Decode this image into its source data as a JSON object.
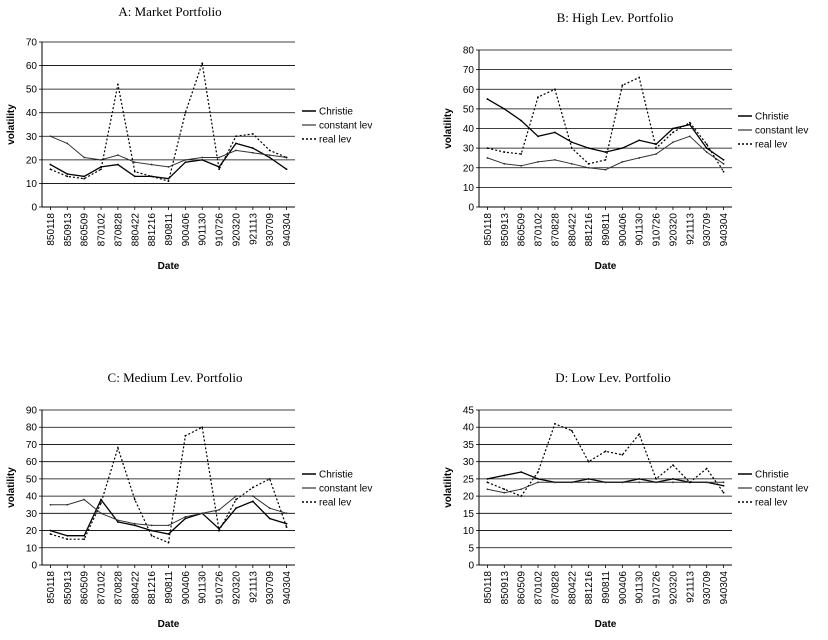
{
  "chart_data": [
    {
      "type": "line",
      "title": "A: Market Portfolio",
      "xlabel": "Date",
      "ylabel": "volatility",
      "ylim": [
        0,
        70
      ],
      "yticks": [
        0,
        10,
        20,
        30,
        40,
        50,
        60,
        70
      ],
      "grid": true,
      "legend_position": "right",
      "x": [
        "850118",
        "850913",
        "860509",
        "870102",
        "870828",
        "880422",
        "881216",
        "890811",
        "900406",
        "901130",
        "910726",
        "920320",
        "921113",
        "930709",
        "940304"
      ],
      "series": [
        {
          "name": "Christie",
          "values": [
            18,
            14,
            13,
            17,
            18,
            13,
            13,
            12,
            19,
            20,
            17,
            27,
            25,
            21,
            16
          ]
        },
        {
          "name": "constant lev",
          "values": [
            30,
            27,
            21,
            20,
            22,
            19,
            18,
            17,
            20,
            21,
            21,
            24,
            23,
            22,
            21
          ]
        },
        {
          "name": "real lev",
          "values": [
            16,
            13,
            12,
            16,
            52,
            15,
            13,
            11,
            40,
            61,
            16,
            30,
            31,
            24,
            21
          ]
        }
      ]
    },
    {
      "type": "line",
      "title": "B: High Lev. Portfolio",
      "xlabel": "Date",
      "ylabel": "volatility",
      "ylim": [
        0,
        80
      ],
      "yticks": [
        0,
        10,
        20,
        30,
        40,
        50,
        60,
        70,
        80
      ],
      "grid": true,
      "legend_position": "right",
      "x": [
        "850118",
        "850913",
        "860509",
        "870102",
        "870828",
        "880422",
        "881216",
        "890811",
        "900406",
        "901130",
        "910726",
        "920320",
        "921113",
        "930709",
        "940304"
      ],
      "series": [
        {
          "name": "Christie",
          "values": [
            55,
            50,
            44,
            36,
            38,
            33,
            30,
            28,
            30,
            34,
            32,
            40,
            42,
            30,
            24
          ]
        },
        {
          "name": "constant lev",
          "values": [
            25,
            22,
            21,
            23,
            24,
            22,
            20,
            19,
            23,
            25,
            27,
            33,
            36,
            28,
            22
          ]
        },
        {
          "name": "real lev",
          "values": [
            30,
            28,
            27,
            56,
            60,
            30,
            22,
            24,
            62,
            66,
            30,
            38,
            43,
            32,
            18
          ]
        }
      ]
    },
    {
      "type": "line",
      "title": "C: Medium Lev. Portfolio",
      "xlabel": "Date",
      "ylabel": "volatility",
      "ylim": [
        0,
        90
      ],
      "yticks": [
        0,
        10,
        20,
        30,
        40,
        50,
        60,
        70,
        80,
        90
      ],
      "grid": true,
      "legend_position": "right",
      "x": [
        "850118",
        "850913",
        "860509",
        "870102",
        "870828",
        "880422",
        "881216",
        "890811",
        "900406",
        "901130",
        "910726",
        "920320",
        "921113",
        "930709",
        "940304"
      ],
      "series": [
        {
          "name": "Christie",
          "values": [
            20,
            17,
            17,
            38,
            25,
            23,
            20,
            18,
            27,
            30,
            21,
            33,
            37,
            27,
            24
          ]
        },
        {
          "name": "constant lev",
          "values": [
            35,
            35,
            38,
            30,
            26,
            24,
            23,
            23,
            28,
            30,
            32,
            40,
            40,
            33,
            30
          ]
        },
        {
          "name": "real lev",
          "values": [
            18,
            15,
            15,
            36,
            68,
            38,
            17,
            13,
            75,
            80,
            20,
            38,
            45,
            50,
            22
          ]
        }
      ]
    },
    {
      "type": "line",
      "title": "D: Low Lev. Portfolio",
      "xlabel": "Date",
      "ylabel": "volatility",
      "ylim": [
        0,
        45
      ],
      "yticks": [
        0,
        5,
        10,
        15,
        20,
        25,
        30,
        35,
        40,
        45
      ],
      "grid": true,
      "legend_position": "right",
      "x": [
        "850118",
        "850913",
        "860509",
        "870102",
        "870828",
        "880422",
        "881216",
        "890811",
        "900406",
        "901130",
        "910726",
        "920320",
        "921113",
        "930709",
        "940304"
      ],
      "series": [
        {
          "name": "Christie",
          "values": [
            25,
            26,
            27,
            25,
            24,
            24,
            25,
            24,
            24,
            25,
            24,
            25,
            24,
            24,
            23
          ]
        },
        {
          "name": "constant lev",
          "values": [
            22,
            21,
            22,
            24,
            24,
            24,
            24,
            24,
            24,
            24,
            24,
            24,
            24,
            24,
            24
          ]
        },
        {
          "name": "real lev",
          "values": [
            24,
            22,
            20,
            27,
            41,
            39,
            30,
            33,
            32,
            38,
            25,
            29,
            24,
            28,
            21
          ]
        }
      ]
    }
  ]
}
